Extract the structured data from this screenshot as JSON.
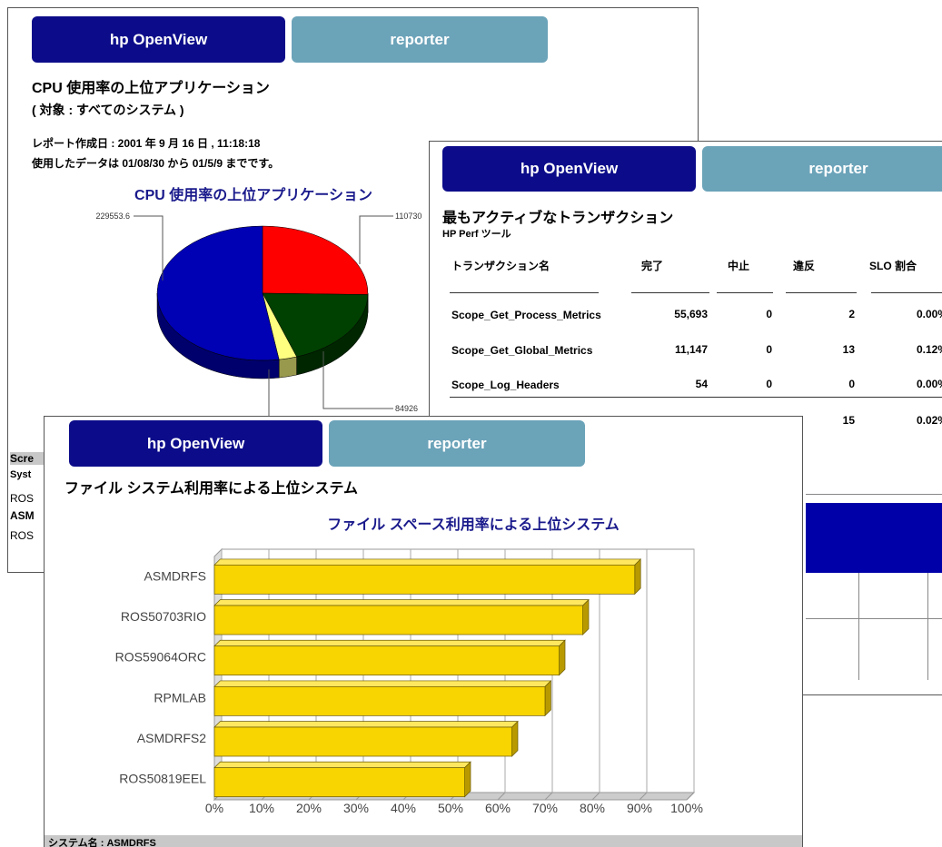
{
  "cpu_report": {
    "brand": "hp OpenView",
    "product": "reporter",
    "title": "CPU 使用率の上位アプリケーション",
    "subtitle": "( 対象 : すべてのシステム )",
    "created": "レポート作成日 : 2001 年 9 月 16 日 , 11:18:18",
    "data_range": "使用したデータは 01/08/30 から 01/5/9 までです。",
    "fragments": [
      "Scre",
      "Syst",
      "ROS",
      "ASM",
      "ROS"
    ]
  },
  "transaction_report": {
    "brand": "hp OpenView",
    "product": "reporter",
    "title": "最もアクティブなトランザクション",
    "subtitle": "HP Perf ツール",
    "columns": [
      "トランザクション名",
      "完了",
      "中止",
      "違反",
      "SLO 割合"
    ],
    "rows": [
      [
        "Scope_Get_Process_Metrics",
        "55,693",
        "0",
        "2",
        "0.00%"
      ],
      [
        "Scope_Get_Global_Metrics",
        "11,147",
        "0",
        "13",
        "0.12%"
      ],
      [
        "Scope_Log_Headers",
        "54",
        "0",
        "0",
        "0.00%"
      ]
    ],
    "total_row_visible": [
      "15",
      "0.02%"
    ]
  },
  "filesystem_report": {
    "brand": "hp OpenView",
    "product": "reporter",
    "title": "ファイル システム利用率による上位システム",
    "footer": "システム名 : ASMDRFS"
  },
  "chart_data": [
    {
      "type": "pie",
      "title": "CPU 使用率の上位アプリケーション",
      "values": [
        110730,
        84926,
        12000,
        229553.6
      ],
      "colors": [
        "#ff0000",
        "#004000",
        "#ffff80",
        "#0000b4"
      ]
    },
    {
      "type": "bar",
      "title": "ファイル スペース利用率による上位システム",
      "categories": [
        "ASMDRFS",
        "ROS50703RIO",
        "ROS59064ORC",
        "RPMLAB",
        "ASMDRFS2",
        "ROS50819EEL"
      ],
      "values": [
        89,
        78,
        73,
        70,
        63,
        53
      ],
      "color": "#f8d400",
      "xlim": [
        0,
        100
      ],
      "xticks": [
        {
          "value": 0,
          "label": "0%"
        },
        {
          "value": 10,
          "label": "10%"
        },
        {
          "value": 20,
          "label": "20%"
        },
        {
          "value": 30,
          "label": "30%"
        },
        {
          "value": 40,
          "label": "40%"
        },
        {
          "value": 50,
          "label": "50%"
        },
        {
          "value": 60,
          "label": "60%"
        },
        {
          "value": 70,
          "label": "70%"
        },
        {
          "value": 80,
          "label": "80%"
        },
        {
          "value": 90,
          "label": "90%"
        },
        {
          "value": 100,
          "label": "100%"
        }
      ],
      "grid": true
    }
  ]
}
